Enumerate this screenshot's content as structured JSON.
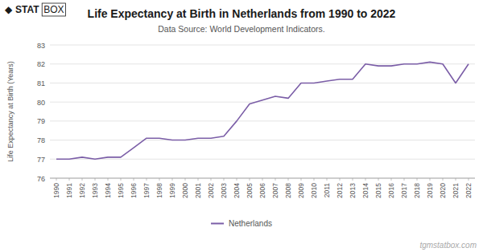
{
  "chart_data": {
    "type": "line",
    "title": "Life Expectancy at Birth in Netherlands from 1990 to 2022",
    "subtitle": "Data Source: World Development Indicators.",
    "y_label": "Life Expectancy at Birth (Years)",
    "x": [
      1990,
      1991,
      1992,
      1993,
      1994,
      1995,
      1996,
      1997,
      1998,
      1999,
      2000,
      2001,
      2002,
      2003,
      2004,
      2005,
      2006,
      2007,
      2008,
      2009,
      2010,
      2011,
      2012,
      2013,
      2014,
      2015,
      2016,
      2017,
      2018,
      2019,
      2020,
      2021,
      2022
    ],
    "series": [
      {
        "name": "Netherlands",
        "color": "#7B5EA7",
        "values": [
          77.0,
          77.0,
          77.1,
          77.0,
          77.1,
          77.1,
          77.6,
          78.1,
          78.1,
          78.0,
          78.0,
          78.1,
          78.1,
          78.2,
          79.0,
          79.9,
          80.1,
          80.3,
          80.2,
          81.0,
          81.0,
          81.1,
          81.2,
          81.2,
          82.0,
          81.9,
          81.9,
          82.0,
          82.0,
          82.1,
          82.0,
          81.0,
          82.0
        ]
      }
    ],
    "xlim": [
      1989.5,
      2022.5
    ],
    "xticks": [
      1990,
      1991,
      1992,
      1993,
      1994,
      1995,
      1996,
      1997,
      1998,
      1999,
      2000,
      2001,
      2002,
      2003,
      2004,
      2005,
      2006,
      2007,
      2008,
      2009,
      2010,
      2011,
      2012,
      2013,
      2014,
      2015,
      2016,
      2017,
      2018,
      2019,
      2020,
      2021,
      2022
    ],
    "ylim": [
      76,
      83
    ],
    "yticks": [
      76,
      77,
      78,
      79,
      80,
      81,
      82,
      83
    ],
    "grid": true,
    "legend": "bottom",
    "annotations": [
      "◆",
      "STAT",
      "BOX",
      "tgmstatbox.com"
    ]
  }
}
